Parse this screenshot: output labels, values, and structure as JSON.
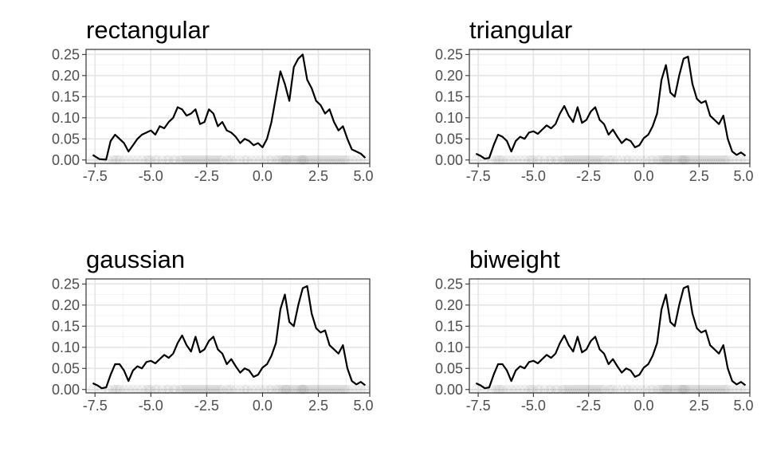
{
  "chart_data": [
    {
      "type": "line",
      "title": "rectangular",
      "kernel": "rectangular",
      "xlim": [
        -7.9,
        4.8
      ],
      "ylim": [
        -0.008,
        0.262
      ],
      "x_ticks": [
        -7.5,
        -5.0,
        -2.5,
        0.0,
        2.5
      ],
      "x_tick_labels": [
        "-7.5",
        "-5.0",
        "-2.5",
        "0.0",
        "2.5"
      ],
      "x_tick_end_label": "5.0",
      "y_ticks": [
        0.0,
        0.05,
        0.1,
        0.15,
        0.2,
        0.25
      ],
      "y_tick_labels": [
        "0.00",
        "0.05",
        "0.10",
        "0.15",
        "0.20",
        "0.25"
      ],
      "grid": true,
      "series": [
        {
          "x": [
            -7.6,
            -7.3,
            -7.0,
            -6.8,
            -6.6,
            -6.4,
            -6.2,
            -6.0,
            -5.8,
            -5.6,
            -5.4,
            -5.2,
            -5.0,
            -4.8,
            -4.6,
            -4.4,
            -4.2,
            -4.0,
            -3.8,
            -3.6,
            -3.4,
            -3.2,
            -3.0,
            -2.8,
            -2.6,
            -2.4,
            -2.2,
            -2.0,
            -1.8,
            -1.6,
            -1.4,
            -1.2,
            -1.0,
            -0.8,
            -0.6,
            -0.4,
            -0.2,
            0.0,
            0.2,
            0.4,
            0.6,
            0.8,
            1.0,
            1.2,
            1.4,
            1.6,
            1.8,
            2.0,
            2.2,
            2.4,
            2.6,
            2.8,
            3.0,
            3.2,
            3.4,
            3.6,
            3.8,
            4.0,
            4.2,
            4.4,
            4.6
          ],
          "y": [
            0.012,
            0.002,
            0.001,
            0.045,
            0.06,
            0.05,
            0.04,
            0.02,
            0.035,
            0.05,
            0.06,
            0.065,
            0.07,
            0.06,
            0.08,
            0.075,
            0.09,
            0.1,
            0.125,
            0.12,
            0.105,
            0.11,
            0.12,
            0.085,
            0.09,
            0.12,
            0.11,
            0.08,
            0.09,
            0.07,
            0.065,
            0.055,
            0.04,
            0.05,
            0.045,
            0.035,
            0.04,
            0.03,
            0.05,
            0.09,
            0.15,
            0.21,
            0.18,
            0.14,
            0.22,
            0.24,
            0.25,
            0.19,
            0.17,
            0.14,
            0.13,
            0.11,
            0.12,
            0.09,
            0.07,
            0.08,
            0.05,
            0.025,
            0.02,
            0.015,
            0.005
          ]
        }
      ],
      "rug_x": [
        -7.6,
        -7.2,
        -6.9,
        -6.7,
        -6.6,
        -6.5,
        -6.4,
        -6.2,
        -6.0,
        -5.8,
        -5.6,
        -5.4,
        -5.2,
        -5.1,
        -5.0,
        -4.8,
        -4.7,
        -4.5,
        -4.3,
        -4.2,
        -4.0,
        -3.9,
        -3.7,
        -3.6,
        -3.5,
        -3.4,
        -3.3,
        -3.2,
        -3.1,
        -3.0,
        -2.9,
        -2.8,
        -2.7,
        -2.6,
        -2.5,
        -2.4,
        -2.3,
        -2.2,
        -2.1,
        -2.0,
        -1.9,
        -1.8,
        -1.6,
        -1.5,
        -1.4,
        -1.2,
        -1.0,
        -0.8,
        -0.7,
        -0.5,
        -0.3,
        -0.1,
        0.1,
        0.3,
        0.4,
        0.6,
        0.7,
        0.8,
        0.9,
        1.0,
        1.05,
        1.1,
        1.2,
        1.3,
        1.4,
        1.5,
        1.6,
        1.7,
        1.75,
        1.8,
        1.85,
        1.9,
        2.0,
        2.1,
        2.2,
        2.3,
        2.4,
        2.5,
        2.6,
        2.7,
        2.8,
        2.9,
        3.0,
        3.1,
        3.2,
        3.3,
        3.4,
        3.5,
        3.6,
        3.7,
        3.8,
        4.0,
        4.2,
        4.4,
        4.6
      ]
    },
    {
      "type": "line",
      "title": "triangular",
      "kernel": "triangular",
      "xlim": [
        -7.9,
        4.8
      ],
      "ylim": [
        -0.008,
        0.262
      ],
      "x_ticks": [
        -7.5,
        -5.0,
        -2.5,
        0.0,
        2.5
      ],
      "x_tick_labels": [
        "-7.5",
        "-5.0",
        "-2.5",
        "0.0",
        "2.5"
      ],
      "x_tick_end_label": "5.0",
      "y_ticks": [
        0.0,
        0.05,
        0.1,
        0.15,
        0.2,
        0.25
      ],
      "y_tick_labels": [
        "0.00",
        "0.05",
        "0.10",
        "0.15",
        "0.20",
        "0.25"
      ],
      "grid": true,
      "series": [
        {
          "x": [
            -7.6,
            -7.4,
            -7.2,
            -7.0,
            -6.8,
            -6.6,
            -6.4,
            -6.2,
            -6.0,
            -5.8,
            -5.6,
            -5.4,
            -5.2,
            -5.0,
            -4.8,
            -4.6,
            -4.4,
            -4.2,
            -4.0,
            -3.8,
            -3.6,
            -3.4,
            -3.2,
            -3.0,
            -2.8,
            -2.6,
            -2.4,
            -2.2,
            -2.0,
            -1.8,
            -1.6,
            -1.4,
            -1.2,
            -1.0,
            -0.8,
            -0.6,
            -0.4,
            -0.2,
            0.0,
            0.2,
            0.4,
            0.6,
            0.8,
            1.0,
            1.2,
            1.4,
            1.6,
            1.8,
            2.0,
            2.2,
            2.4,
            2.6,
            2.8,
            3.0,
            3.2,
            3.4,
            3.6,
            3.8,
            4.0,
            4.2,
            4.4,
            4.6
          ],
          "y": [
            0.015,
            0.01,
            0.003,
            0.005,
            0.035,
            0.06,
            0.055,
            0.045,
            0.02,
            0.045,
            0.055,
            0.05,
            0.065,
            0.068,
            0.062,
            0.072,
            0.082,
            0.075,
            0.085,
            0.11,
            0.128,
            0.105,
            0.09,
            0.125,
            0.088,
            0.095,
            0.115,
            0.125,
            0.095,
            0.085,
            0.06,
            0.072,
            0.055,
            0.04,
            0.05,
            0.045,
            0.03,
            0.035,
            0.052,
            0.06,
            0.08,
            0.11,
            0.19,
            0.225,
            0.16,
            0.15,
            0.2,
            0.24,
            0.245,
            0.18,
            0.145,
            0.135,
            0.14,
            0.105,
            0.095,
            0.085,
            0.105,
            0.05,
            0.02,
            0.012,
            0.018,
            0.01
          ]
        }
      ],
      "rug_x": [
        -7.6,
        -7.2,
        -6.9,
        -6.7,
        -6.6,
        -6.5,
        -6.4,
        -6.2,
        -6.0,
        -5.8,
        -5.6,
        -5.4,
        -5.2,
        -5.1,
        -5.0,
        -4.8,
        -4.7,
        -4.5,
        -4.3,
        -4.2,
        -4.0,
        -3.9,
        -3.7,
        -3.6,
        -3.5,
        -3.4,
        -3.3,
        -3.2,
        -3.1,
        -3.0,
        -2.9,
        -2.8,
        -2.7,
        -2.6,
        -2.5,
        -2.4,
        -2.3,
        -2.2,
        -2.1,
        -2.0,
        -1.9,
        -1.8,
        -1.6,
        -1.5,
        -1.4,
        -1.2,
        -1.0,
        -0.8,
        -0.7,
        -0.5,
        -0.3,
        -0.1,
        0.1,
        0.3,
        0.4,
        0.6,
        0.7,
        0.8,
        0.9,
        1.0,
        1.05,
        1.1,
        1.2,
        1.3,
        1.4,
        1.5,
        1.6,
        1.7,
        1.75,
        1.8,
        1.85,
        1.9,
        2.0,
        2.1,
        2.2,
        2.3,
        2.4,
        2.5,
        2.6,
        2.7,
        2.8,
        2.9,
        3.0,
        3.1,
        3.2,
        3.3,
        3.4,
        3.5,
        3.6,
        3.7,
        3.8,
        4.0,
        4.2,
        4.4,
        4.6
      ]
    },
    {
      "type": "line",
      "title": "gaussian",
      "kernel": "gaussian",
      "xlim": [
        -7.9,
        4.8
      ],
      "ylim": [
        -0.008,
        0.262
      ],
      "x_ticks": [
        -7.5,
        -5.0,
        -2.5,
        0.0,
        2.5
      ],
      "x_tick_labels": [
        "-7.5",
        "-5.0",
        "-2.5",
        "0.0",
        "2.5"
      ],
      "x_tick_end_label": "5.0",
      "y_ticks": [
        0.0,
        0.05,
        0.1,
        0.15,
        0.2,
        0.25
      ],
      "y_tick_labels": [
        "0.00",
        "0.05",
        "0.10",
        "0.15",
        "0.20",
        "0.25"
      ],
      "grid": true,
      "series": [
        {
          "x": [
            -7.6,
            -7.4,
            -7.2,
            -7.0,
            -6.8,
            -6.6,
            -6.4,
            -6.2,
            -6.0,
            -5.8,
            -5.6,
            -5.4,
            -5.2,
            -5.0,
            -4.8,
            -4.6,
            -4.4,
            -4.2,
            -4.0,
            -3.8,
            -3.6,
            -3.4,
            -3.2,
            -3.0,
            -2.8,
            -2.6,
            -2.4,
            -2.2,
            -2.0,
            -1.8,
            -1.6,
            -1.4,
            -1.2,
            -1.0,
            -0.8,
            -0.6,
            -0.4,
            -0.2,
            0.0,
            0.2,
            0.4,
            0.6,
            0.8,
            1.0,
            1.2,
            1.4,
            1.6,
            1.8,
            2.0,
            2.2,
            2.4,
            2.6,
            2.8,
            3.0,
            3.2,
            3.4,
            3.6,
            3.8,
            4.0,
            4.2,
            4.4,
            4.6
          ],
          "y": [
            0.015,
            0.01,
            0.003,
            0.005,
            0.035,
            0.06,
            0.06,
            0.045,
            0.02,
            0.045,
            0.055,
            0.05,
            0.065,
            0.068,
            0.062,
            0.072,
            0.082,
            0.075,
            0.085,
            0.11,
            0.128,
            0.105,
            0.09,
            0.125,
            0.088,
            0.095,
            0.115,
            0.125,
            0.095,
            0.085,
            0.06,
            0.072,
            0.055,
            0.04,
            0.05,
            0.045,
            0.03,
            0.035,
            0.052,
            0.06,
            0.08,
            0.11,
            0.19,
            0.225,
            0.16,
            0.15,
            0.2,
            0.24,
            0.245,
            0.18,
            0.145,
            0.135,
            0.14,
            0.105,
            0.095,
            0.085,
            0.105,
            0.05,
            0.02,
            0.012,
            0.018,
            0.01
          ]
        }
      ],
      "rug_x": [
        -7.6,
        -7.2,
        -6.9,
        -6.7,
        -6.6,
        -6.5,
        -6.4,
        -6.2,
        -6.0,
        -5.8,
        -5.6,
        -5.4,
        -5.2,
        -5.1,
        -5.0,
        -4.8,
        -4.7,
        -4.5,
        -4.3,
        -4.2,
        -4.0,
        -3.9,
        -3.7,
        -3.6,
        -3.5,
        -3.4,
        -3.3,
        -3.2,
        -3.1,
        -3.0,
        -2.9,
        -2.8,
        -2.7,
        -2.6,
        -2.5,
        -2.4,
        -2.3,
        -2.2,
        -2.1,
        -2.0,
        -1.9,
        -1.8,
        -1.6,
        -1.5,
        -1.4,
        -1.2,
        -1.0,
        -0.8,
        -0.7,
        -0.5,
        -0.3,
        -0.1,
        0.1,
        0.3,
        0.4,
        0.6,
        0.7,
        0.8,
        0.9,
        1.0,
        1.05,
        1.1,
        1.2,
        1.3,
        1.4,
        1.5,
        1.6,
        1.7,
        1.75,
        1.8,
        1.85,
        1.9,
        2.0,
        2.1,
        2.2,
        2.3,
        2.4,
        2.5,
        2.6,
        2.7,
        2.8,
        2.9,
        3.0,
        3.1,
        3.2,
        3.3,
        3.4,
        3.5,
        3.6,
        3.7,
        3.8,
        4.0,
        4.2,
        4.4,
        4.6
      ]
    },
    {
      "type": "line",
      "title": "biweight",
      "kernel": "biweight",
      "xlim": [
        -7.9,
        4.8
      ],
      "ylim": [
        -0.008,
        0.262
      ],
      "x_ticks": [
        -7.5,
        -5.0,
        -2.5,
        0.0,
        2.5
      ],
      "x_tick_labels": [
        "-7.5",
        "-5.0",
        "-2.5",
        "0.0",
        "2.5"
      ],
      "x_tick_end_label": "5.0",
      "y_ticks": [
        0.0,
        0.05,
        0.1,
        0.15,
        0.2,
        0.25
      ],
      "y_tick_labels": [
        "0.00",
        "0.05",
        "0.10",
        "0.15",
        "0.20",
        "0.25"
      ],
      "grid": true,
      "series": [
        {
          "x": [
            -7.6,
            -7.4,
            -7.2,
            -7.0,
            -6.8,
            -6.6,
            -6.4,
            -6.2,
            -6.0,
            -5.8,
            -5.6,
            -5.4,
            -5.2,
            -5.0,
            -4.8,
            -4.6,
            -4.4,
            -4.2,
            -4.0,
            -3.8,
            -3.6,
            -3.4,
            -3.2,
            -3.0,
            -2.8,
            -2.6,
            -2.4,
            -2.2,
            -2.0,
            -1.8,
            -1.6,
            -1.4,
            -1.2,
            -1.0,
            -0.8,
            -0.6,
            -0.4,
            -0.2,
            0.0,
            0.2,
            0.4,
            0.6,
            0.8,
            1.0,
            1.2,
            1.4,
            1.6,
            1.8,
            2.0,
            2.2,
            2.4,
            2.6,
            2.8,
            3.0,
            3.2,
            3.4,
            3.6,
            3.8,
            4.0,
            4.2,
            4.4,
            4.6
          ],
          "y": [
            0.015,
            0.01,
            0.003,
            0.005,
            0.035,
            0.06,
            0.06,
            0.045,
            0.02,
            0.045,
            0.055,
            0.05,
            0.065,
            0.068,
            0.062,
            0.072,
            0.082,
            0.075,
            0.085,
            0.11,
            0.128,
            0.105,
            0.09,
            0.125,
            0.088,
            0.095,
            0.115,
            0.125,
            0.095,
            0.085,
            0.06,
            0.072,
            0.055,
            0.04,
            0.05,
            0.045,
            0.03,
            0.035,
            0.052,
            0.06,
            0.08,
            0.11,
            0.19,
            0.225,
            0.16,
            0.15,
            0.2,
            0.24,
            0.245,
            0.18,
            0.145,
            0.135,
            0.14,
            0.105,
            0.095,
            0.085,
            0.105,
            0.05,
            0.02,
            0.012,
            0.018,
            0.01
          ]
        }
      ],
      "rug_x": [
        -7.6,
        -7.2,
        -6.9,
        -6.7,
        -6.6,
        -6.5,
        -6.4,
        -6.2,
        -6.0,
        -5.8,
        -5.6,
        -5.4,
        -5.2,
        -5.1,
        -5.0,
        -4.8,
        -4.7,
        -4.5,
        -4.3,
        -4.2,
        -4.0,
        -3.9,
        -3.7,
        -3.6,
        -3.5,
        -3.4,
        -3.3,
        -3.2,
        -3.1,
        -3.0,
        -2.9,
        -2.8,
        -2.7,
        -2.6,
        -2.5,
        -2.4,
        -2.3,
        -2.2,
        -2.1,
        -2.0,
        -1.9,
        -1.8,
        -1.6,
        -1.5,
        -1.4,
        -1.2,
        -1.0,
        -0.8,
        -0.7,
        -0.5,
        -0.3,
        -0.1,
        0.1,
        0.3,
        0.4,
        0.6,
        0.7,
        0.8,
        0.9,
        1.0,
        1.05,
        1.1,
        1.2,
        1.3,
        1.4,
        1.5,
        1.6,
        1.7,
        1.75,
        1.8,
        1.85,
        1.9,
        2.0,
        2.1,
        2.2,
        2.3,
        2.4,
        2.5,
        2.6,
        2.7,
        2.8,
        2.9,
        3.0,
        3.1,
        3.2,
        3.3,
        3.4,
        3.5,
        3.6,
        3.7,
        3.8,
        4.0,
        4.2,
        4.4,
        4.6
      ]
    }
  ]
}
